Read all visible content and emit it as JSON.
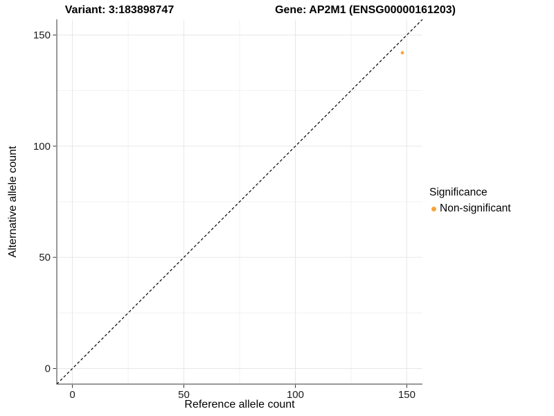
{
  "titles": {
    "variant": "Variant: 3:183898747",
    "gene": "Gene: AP2M1 (ENSG00000161203)"
  },
  "chart_data": {
    "type": "scatter",
    "xlabel": "Reference allele count",
    "ylabel": "Alternative allele count",
    "xlim": [
      -7,
      157
    ],
    "ylim": [
      -7,
      157
    ],
    "x_ticks": [
      0,
      50,
      100,
      150
    ],
    "y_ticks": [
      0,
      50,
      100,
      150
    ],
    "x_minor_ticks": [
      25,
      75,
      125
    ],
    "y_minor_ticks": [
      25,
      75,
      125
    ],
    "grid": true,
    "identity_line": {
      "style": "dashed",
      "color": "#000000",
      "from": -7,
      "to": 157
    },
    "series": [
      {
        "name": "Non-significant",
        "color": "#F9A33B",
        "points": [
          {
            "x": 148,
            "y": 142
          }
        ]
      }
    ],
    "legend": {
      "title": "Significance",
      "position": "right",
      "entries": [
        {
          "label": "Non-significant",
          "color": "#F9A33B"
        }
      ]
    },
    "theme": {
      "background": "#FFFFFF",
      "grid_major": "#E7E7E7",
      "grid_minor": "#F1F1F1",
      "axis_line": "#333333",
      "tick_label_color": "#1A1A1A"
    }
  }
}
